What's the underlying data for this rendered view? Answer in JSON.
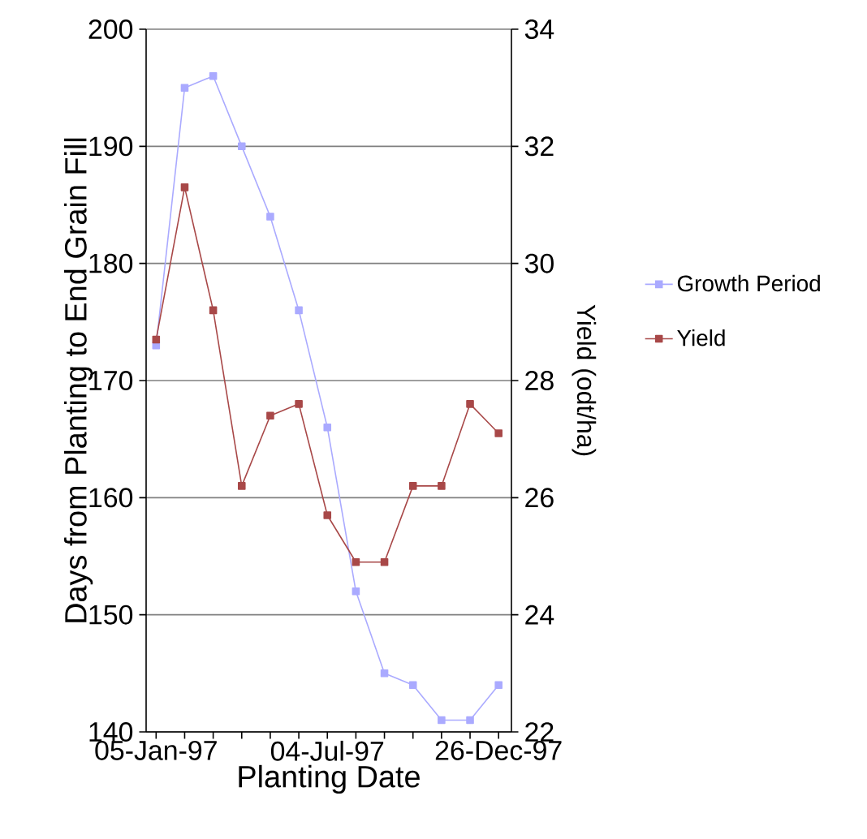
{
  "chart_data": {
    "type": "line",
    "xlabel": "Planting Date",
    "ylabel": "Days from Planting to End Grain Fill",
    "y2label": "Yield (odt/ha)",
    "categories": [
      "05-Jan-97",
      null,
      null,
      null,
      null,
      null,
      "04-Jul-97",
      null,
      null,
      null,
      null,
      null,
      "26-Dec-97"
    ],
    "series": [
      {
        "name": "Growth Period",
        "color": "#aaaaff",
        "values": [
          173,
          195,
          196,
          190,
          184,
          176,
          166,
          152,
          145,
          144,
          141,
          141,
          144
        ]
      },
      {
        "name": "Yield",
        "color": "#a84848",
        "axis": "y2",
        "values": [
          28.7,
          31.3,
          29.2,
          26.2,
          27.4,
          27.6,
          25.7,
          24.9,
          24.9,
          26.2,
          26.2,
          27.6,
          27.1
        ]
      }
    ],
    "ylim": [
      140,
      200
    ],
    "yticks": [
      140,
      150,
      160,
      170,
      180,
      190,
      200
    ],
    "y2lim": [
      22,
      34
    ],
    "y2ticks": [
      22,
      24,
      26,
      28,
      30,
      32,
      34
    ],
    "grid": "y",
    "legend": "right",
    "marker": "square",
    "line_style": "solid"
  }
}
